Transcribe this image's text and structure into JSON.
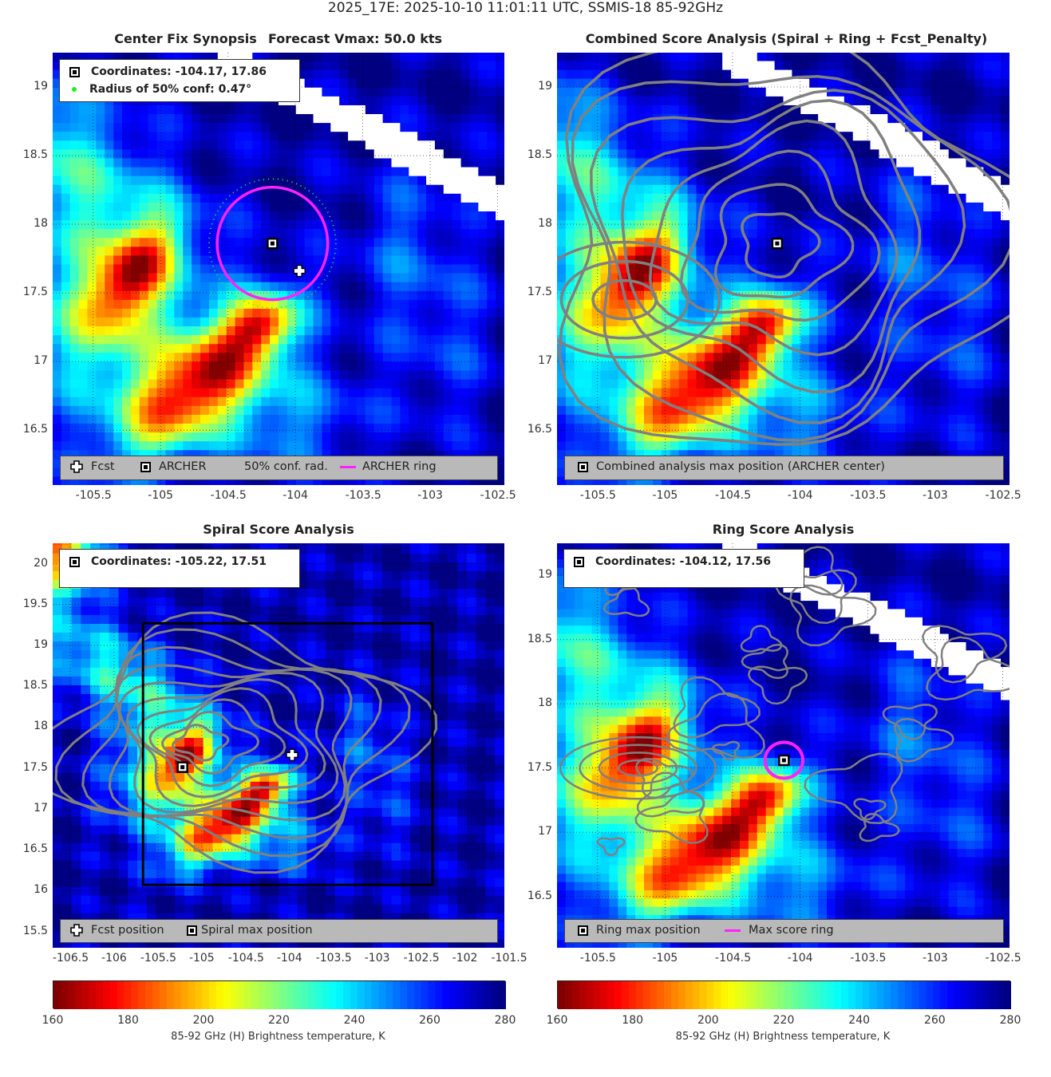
{
  "figure": {
    "suptitle": "2025_17E: 2025-10-10 11:01:11 UTC, SSMIS-18 85-92GHz",
    "colors": {
      "archer_ring": "#ff22ff",
      "contour": "#808080",
      "land_mask": "#ffffff",
      "legend_bg": "#b9b9b9"
    }
  },
  "panels": {
    "synopsis": {
      "title_left": "Center Fix Synopsis",
      "title_right": "Forecast Vmax: 50.0 kts",
      "info": {
        "coords": "Coordinates: -104.17, 17.86",
        "radius": "Radius of 50% conf: 0.47°"
      },
      "legend": {
        "fcst": "Fcst",
        "archer": "ARCHER",
        "conf": "50% conf. rad.",
        "ring": "ARCHER ring"
      }
    },
    "combined": {
      "title": "Combined Score Analysis (Spiral + Ring + Fcst_Penalty)",
      "legend": {
        "max": "Combined analysis max position (ARCHER center)"
      }
    },
    "spiral": {
      "title": "Spiral Score Analysis",
      "info": {
        "coords": "Coordinates: -105.22, 17.51"
      },
      "legend": {
        "fcst": "Fcst position",
        "max": "Spiral max position"
      }
    },
    "ring": {
      "title": "Ring Score Analysis",
      "info": {
        "coords": "Coordinates: -104.12, 17.56"
      },
      "legend": {
        "max": "Ring max position",
        "ring": "Max score ring"
      }
    }
  },
  "colorbars": {
    "label": "85-92 GHz (H) Brightness temperature, K",
    "ticks": [
      "160",
      "180",
      "200",
      "220",
      "240",
      "260",
      "280"
    ]
  },
  "chart_data": [
    {
      "type": "heatmap",
      "name": "synopsis",
      "xlim": [
        -105.8,
        -102.45
      ],
      "ylim": [
        16.1,
        19.25
      ],
      "xticks": [
        "-105.5",
        "-105",
        "-104.5",
        "-104",
        "-103.5",
        "-103",
        "-102.5"
      ],
      "yticks": [
        "16.5",
        "17",
        "17.5",
        "18",
        "18.5",
        "19"
      ],
      "points": {
        "archer": [
          -104.17,
          17.86
        ],
        "fcst": [
          -103.97,
          17.66
        ]
      },
      "ring": {
        "center": [
          -104.17,
          17.86
        ],
        "radius_deg": 0.41
      },
      "conf_radius_deg": 0.47,
      "color_range": [
        160,
        280
      ]
    },
    {
      "type": "heatmap",
      "name": "combined",
      "xlim": [
        -105.8,
        -102.45
      ],
      "ylim": [
        16.1,
        19.25
      ],
      "xticks": [
        "-105.5",
        "-105",
        "-104.5",
        "-104",
        "-103.5",
        "-103",
        "-102.5"
      ],
      "yticks": [
        "16.5",
        "17",
        "17.5",
        "18",
        "18.5",
        "19"
      ],
      "points": {
        "max": [
          -104.17,
          17.86
        ]
      },
      "color_range": [
        160,
        280
      ]
    },
    {
      "type": "heatmap",
      "name": "spiral",
      "xlim": [
        -106.7,
        -101.55
      ],
      "ylim": [
        15.3,
        20.25
      ],
      "xticks": [
        "-106.5",
        "-106",
        "-105.5",
        "-105",
        "-104.5",
        "-104",
        "-103.5",
        "-103",
        "-102.5",
        "-102",
        "-101.5"
      ],
      "yticks": [
        "15.5",
        "16",
        "16.5",
        "17",
        "17.5",
        "18",
        "18.5",
        "19",
        "19.5",
        "20"
      ],
      "points": {
        "max": [
          -105.22,
          17.51
        ],
        "fcst": [
          -103.97,
          17.66
        ]
      },
      "search_box": {
        "x": [
          -105.67,
          -102.37
        ],
        "y": [
          16.07,
          19.27
        ]
      },
      "color_range": [
        160,
        280
      ]
    },
    {
      "type": "heatmap",
      "name": "ring",
      "xlim": [
        -105.8,
        -102.45
      ],
      "ylim": [
        16.1,
        19.25
      ],
      "xticks": [
        "-105.5",
        "-105",
        "-104.5",
        "-104",
        "-103.5",
        "-103",
        "-102.5"
      ],
      "yticks": [
        "16.5",
        "17",
        "17.5",
        "18",
        "18.5",
        "19"
      ],
      "points": {
        "max": [
          -104.12,
          17.56
        ]
      },
      "ring": {
        "center": [
          -104.12,
          17.56
        ],
        "radius_deg": 0.14
      },
      "color_range": [
        160,
        280
      ]
    }
  ]
}
